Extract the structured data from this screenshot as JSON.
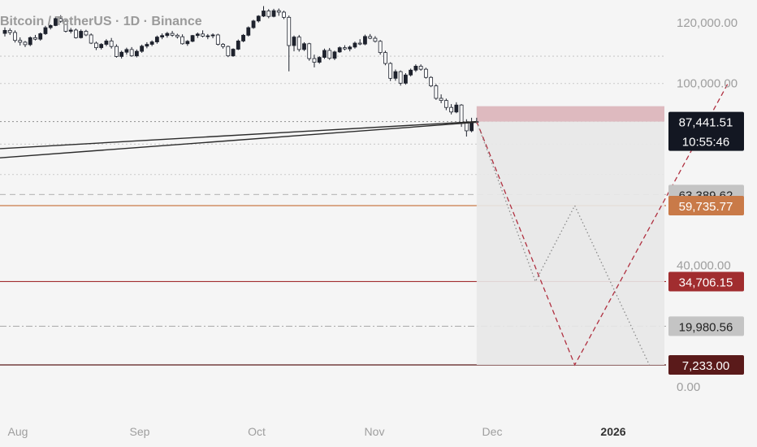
{
  "title": "Bitcoin / TetherUS · 1D · Binance",
  "chart_data": {
    "type": "candlestick",
    "title": "Bitcoin / TetherUS · 1D · Binance",
    "y_axis_ticks": [
      "120,000.00",
      "100,000.00",
      "40,000.00",
      "0.00"
    ],
    "x_axis_ticks": [
      "Aug",
      "Sep",
      "Oct",
      "Nov",
      "Dec",
      "2026"
    ],
    "ohlc_series": [
      [
        116500,
        118500,
        115500,
        117500
      ],
      [
        117500,
        118200,
        116000,
        116800
      ],
      [
        116800,
        117500,
        113500,
        114200
      ],
      [
        114200,
        115200,
        112500,
        113600
      ],
      [
        113600,
        114000,
        112000,
        112800
      ],
      [
        112800,
        115500,
        112300,
        115100
      ],
      [
        115100,
        116000,
        114200,
        114600
      ],
      [
        114600,
        116800,
        114100,
        116400
      ],
      [
        116400,
        119000,
        116000,
        118400
      ],
      [
        118400,
        119500,
        117800,
        119100
      ],
      [
        119100,
        121800,
        118900,
        121400
      ],
      [
        121400,
        122500,
        120000,
        120500
      ],
      [
        120500,
        121000,
        116800,
        117200
      ],
      [
        117200,
        118300,
        116500,
        117600
      ],
      [
        117600,
        118100,
        114800,
        115100
      ],
      [
        115100,
        117800,
        114800,
        117200
      ],
      [
        117200,
        117700,
        115600,
        116000
      ],
      [
        116000,
        116500,
        113000,
        113300
      ],
      [
        113300,
        113800,
        111000,
        111800
      ],
      [
        111800,
        113300,
        111200,
        112900
      ],
      [
        112900,
        114600,
        112300,
        114000
      ],
      [
        114000,
        115000,
        111500,
        112200
      ],
      [
        112200,
        112900,
        108500,
        108900
      ],
      [
        108900,
        110800,
        108200,
        110300
      ],
      [
        110300,
        111800,
        109500,
        111200
      ],
      [
        111200,
        112000,
        108800,
        109100
      ],
      [
        109100,
        111200,
        108600,
        110600
      ],
      [
        110600,
        112800,
        110100,
        112300
      ],
      [
        112300,
        113600,
        111600,
        112900
      ],
      [
        112900,
        114200,
        112300,
        113700
      ],
      [
        113700,
        115800,
        113100,
        115300
      ],
      [
        115300,
        116500,
        114600,
        115800
      ],
      [
        115800,
        117000,
        115100,
        116500
      ],
      [
        116500,
        117300,
        115400,
        115900
      ],
      [
        115900,
        116400,
        114800,
        115400
      ],
      [
        115400,
        116200,
        112800,
        113100
      ],
      [
        113100,
        114300,
        112400,
        113900
      ],
      [
        113900,
        116000,
        113600,
        115800
      ],
      [
        115800,
        116800,
        115000,
        116300
      ],
      [
        116300,
        117500,
        115200,
        115600
      ],
      [
        115600,
        116300,
        114600,
        115700
      ],
      [
        115700,
        116500,
        114900,
        116000
      ],
      [
        116000,
        116400,
        112500,
        112900
      ],
      [
        112900,
        113300,
        111500,
        112200
      ],
      [
        112200,
        112500,
        108700,
        109100
      ],
      [
        109100,
        111600,
        108800,
        111300
      ],
      [
        111300,
        114500,
        111000,
        114000
      ],
      [
        114000,
        116300,
        113600,
        115900
      ],
      [
        115900,
        118800,
        115500,
        118400
      ],
      [
        118400,
        121000,
        118000,
        120600
      ],
      [
        120600,
        122500,
        120100,
        122200
      ],
      [
        122200,
        125500,
        121900,
        123900
      ],
      [
        123900,
        124500,
        121500,
        122100
      ],
      [
        122100,
        124600,
        121800,
        124000
      ],
      [
        124000,
        124700,
        122300,
        123500
      ],
      [
        123500,
        124000,
        121200,
        121800
      ],
      [
        121800,
        122400,
        104000,
        112500
      ],
      [
        112500,
        115800,
        110600,
        115300
      ],
      [
        115300,
        116000,
        110500,
        111200
      ],
      [
        111200,
        113600,
        110700,
        113100
      ],
      [
        113100,
        113400,
        107500,
        108200
      ],
      [
        108200,
        109500,
        105300,
        107000
      ],
      [
        107000,
        109000,
        106500,
        108600
      ],
      [
        108600,
        111500,
        108100,
        110900
      ],
      [
        110900,
        111700,
        107800,
        108300
      ],
      [
        108300,
        110800,
        107700,
        110400
      ],
      [
        110400,
        112200,
        110100,
        111800
      ],
      [
        111800,
        112600,
        110900,
        111400
      ],
      [
        111400,
        112500,
        110600,
        112000
      ],
      [
        112000,
        113800,
        111500,
        113300
      ],
      [
        113300,
        114600,
        112600,
        113000
      ],
      [
        113000,
        116100,
        112600,
        115500
      ],
      [
        115500,
        116300,
        114600,
        114900
      ],
      [
        114900,
        115600,
        113500,
        113900
      ],
      [
        113900,
        114300,
        109500,
        110200
      ],
      [
        110200,
        110800,
        106000,
        106600
      ],
      [
        106600,
        107000,
        100800,
        101700
      ],
      [
        101700,
        104600,
        100900,
        103900
      ],
      [
        103900,
        104300,
        99300,
        100100
      ],
      [
        100100,
        103400,
        99600,
        102800
      ],
      [
        102800,
        104900,
        102300,
        104400
      ],
      [
        104400,
        106300,
        103800,
        105700
      ],
      [
        105700,
        106300,
        104200,
        104700
      ],
      [
        104700,
        105200,
        101600,
        102000
      ],
      [
        102000,
        102400,
        98800,
        99200
      ],
      [
        99200,
        99800,
        94600,
        95100
      ],
      [
        95100,
        96400,
        93500,
        94400
      ],
      [
        94400,
        95000,
        91200,
        92100
      ],
      [
        92100,
        93200,
        89800,
        90600
      ],
      [
        90600,
        93800,
        90200,
        92900
      ],
      [
        92900,
        93200,
        85700,
        86900
      ],
      [
        86900,
        88200,
        82500,
        84400
      ],
      [
        84400,
        88700,
        83900,
        87200
      ],
      [
        87200,
        88700,
        86800,
        87441
      ]
    ],
    "trend_lines": [
      {
        "points": [
          [
            "start",
            78500
          ],
          [
            "Nov 27",
            87441
          ]
        ]
      },
      {
        "points": [
          [
            "start",
            75500
          ],
          [
            "Nov 27",
            87200
          ]
        ]
      }
    ],
    "horizontal_levels": [
      {
        "value": 87441.51,
        "style": "dotted",
        "color": "#9a9a9a"
      },
      {
        "value": 63389.62,
        "style": "dashed",
        "color": "#bdbdbd"
      },
      {
        "value": 59735.77,
        "style": "solid",
        "color": "#c97a48"
      },
      {
        "value": 34706.15,
        "style": "solid",
        "color": "#a12d2f"
      },
      {
        "value": 19980.56,
        "style": "dashdot",
        "color": "#b0b0b0"
      },
      {
        "value": 7233.0,
        "style": "solid",
        "color": "#5a1a1a"
      },
      {
        "value": 109000,
        "style": "dotted",
        "color": "#cfcfcf"
      },
      {
        "value": 100000,
        "style": "dotted",
        "color": "#cfcfcf"
      },
      {
        "value": 80000,
        "style": "dotted",
        "color": "#cfcfcf"
      },
      {
        "value": 70000,
        "style": "dotted",
        "color": "#cfcfcf"
      }
    ],
    "projection_zone": {
      "x_start": "Nov 27",
      "x_end": "Jan 20",
      "y_top": 92500,
      "y_bottom": 7233,
      "stop_band_top": 92500,
      "stop_band_bottom": 87441
    },
    "projection_paths": [
      {
        "style": "dashed",
        "color": "#b03040",
        "points": [
          [
            "Nov 27",
            87441
          ],
          [
            "Dec 22",
            7233
          ],
          [
            "Jan 31",
            100000
          ]
        ]
      },
      {
        "style": "dotted",
        "color": "#8a8a8a",
        "points": [
          [
            "Nov 27",
            87441
          ],
          [
            "Dec 12",
            34706
          ],
          [
            "Dec 22",
            59736
          ],
          [
            "Jan 11",
            7233
          ]
        ]
      }
    ],
    "price_badges": [
      {
        "value_label": "87,441.51",
        "sub_label": "10:55:46",
        "value": 87441.51,
        "bg": "#131722",
        "fg": "#ffffff"
      },
      {
        "value_label": "63,389.62",
        "value": 63389.62,
        "bg": "#c4c4c4",
        "fg": "#222222"
      },
      {
        "value_label": "59,735.77",
        "value": 59735.77,
        "bg": "#c97a48",
        "fg": "#ffffff"
      },
      {
        "value_label": "34,706.15",
        "value": 34706.15,
        "bg": "#a12d2f",
        "fg": "#ffffff"
      },
      {
        "value_label": "19,980.56",
        "value": 19980.56,
        "bg": "#c4c4c4",
        "fg": "#222222"
      },
      {
        "value_label": "7,233.00",
        "value": 7233.0,
        "bg": "#5a1a1a",
        "fg": "#ffffff"
      }
    ]
  }
}
